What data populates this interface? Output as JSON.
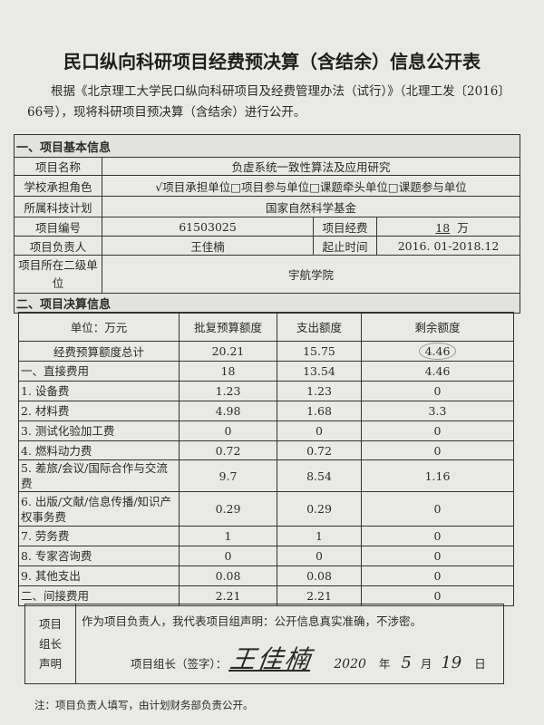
{
  "title": "民口纵向科研项目经费预决算（含结余）信息公开表",
  "intro": "根据《北京理工大学民口纵向科研项目及经费管理办法（试行）》（北理工发〔2016〕66号），现将科研项目预决算（含结余）进行公开。",
  "section1": {
    "heading": "一、项目基本信息",
    "name_label": "项目名称",
    "name": "负虚系统一致性算法及应用研究",
    "role_label": "学校承担角色",
    "role": "√项目承担单位□项目参与单位□课题牵头单位□课题参与单位",
    "plan_label": "所属科技计划",
    "plan": "国家自然科学基金",
    "number_label": "项目编号",
    "number": "61503025",
    "funds_label": "项目经费",
    "funds": "18",
    "funds_unit": "万",
    "leader_label": "项目负责人",
    "leader": "王佳楠",
    "period_label": "起止时间",
    "period": "2016. 01-2018.12",
    "unit_label": "项目所在二级单位",
    "unit": "宇航学院"
  },
  "section2": {
    "heading": "二、项目决算信息",
    "columns": [
      "单位：万元",
      "批复预算额度",
      "支出额度",
      "剩余额度"
    ],
    "rows": [
      [
        "经费预算额度总计",
        "20.21",
        "15.75",
        "4.46"
      ],
      [
        "一、直接费用",
        "18",
        "13.54",
        "4.46"
      ],
      [
        "1. 设备费",
        "1.23",
        "1.23",
        "0"
      ],
      [
        "2. 材料费",
        "4.98",
        "1.68",
        "3.3"
      ],
      [
        "3. 测试化验加工费",
        "0",
        "0",
        "0"
      ],
      [
        "4. 燃料动力费",
        "0.72",
        "0.72",
        "0"
      ],
      [
        "5. 差旅/会议/国际合作与交流费",
        "9.7",
        "8.54",
        "1.16"
      ],
      [
        "6. 出版/文献/信息传播/知识产权事务费",
        "0.29",
        "0.29",
        "0"
      ],
      [
        "7. 劳务费",
        "1",
        "1",
        "0"
      ],
      [
        "8. 专家咨询费",
        "0",
        "0",
        "0"
      ],
      [
        "9. 其他支出",
        "0.08",
        "0.08",
        "0"
      ],
      [
        "二、间接费用",
        "2.21",
        "2.21",
        "0"
      ]
    ]
  },
  "declaration": {
    "label": "项目组长声明",
    "text": "作为项目负责人，我代表项目组声明：公开信息真实准确，不涉密。",
    "sign_label": "项目组长（签字）：",
    "signature": "王佳楠",
    "year": "2020",
    "year_suffix": "年",
    "month": "5",
    "month_suffix": "月",
    "day": "19",
    "day_suffix": "日"
  },
  "note": "注：项目负责人填写，由计划财务部负责公开。"
}
